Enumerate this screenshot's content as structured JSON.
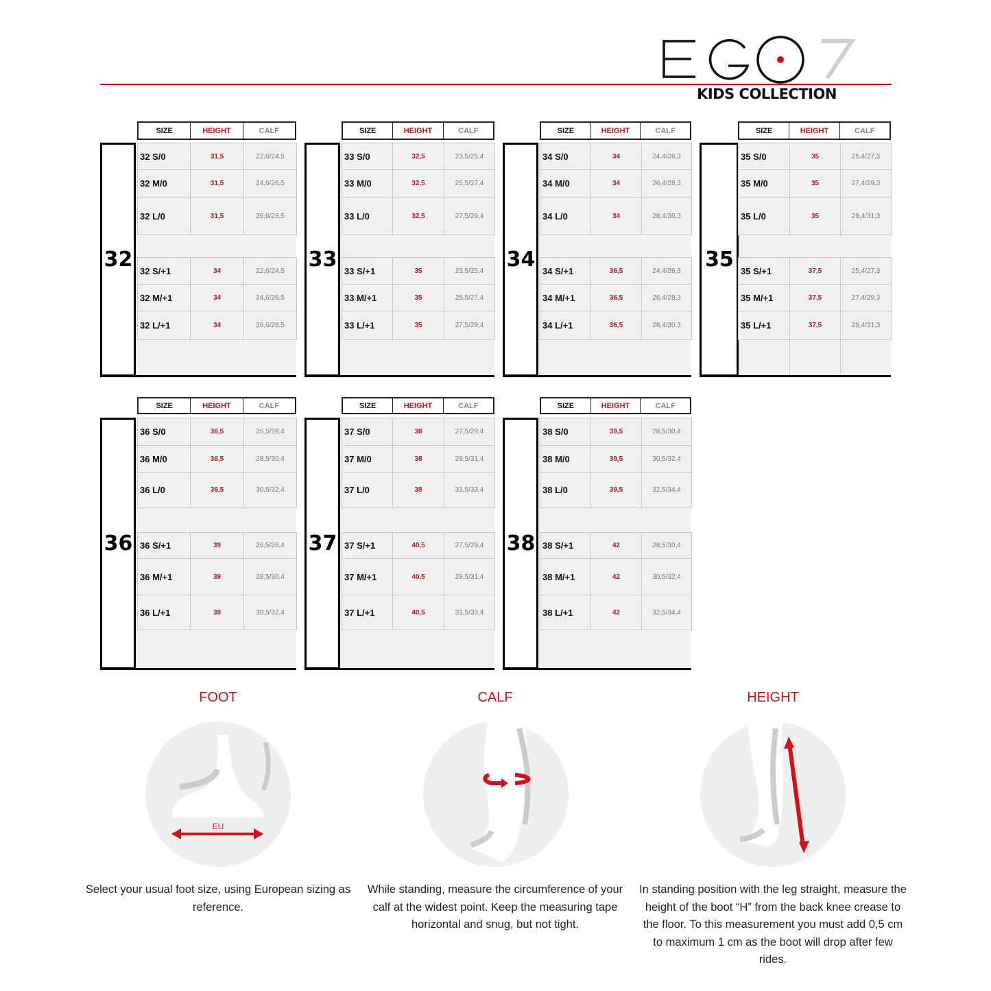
{
  "brand": {
    "logo_text": "EGO7",
    "subtitle": "KIDS COLLECTION",
    "accent": "#c0171e"
  },
  "table_headers": {
    "size": "SIZE",
    "height": "HEIGHT",
    "calf": "CALF"
  },
  "blocks": [
    {
      "size": "32",
      "rows": [
        [
          "32 S/0",
          "31,5",
          "22,6/24,5"
        ],
        [
          "32 M/0",
          "31,5",
          "24,6/26,5"
        ],
        [
          "32 L/0",
          "31,5",
          "26,6/28,5"
        ],
        [
          "32 S/+1",
          "34",
          "22,6/24,5"
        ],
        [
          "32 M/+1",
          "34",
          "24,6/26,5"
        ],
        [
          "32 L/+1",
          "34",
          "26,6/28,5"
        ]
      ]
    },
    {
      "size": "33",
      "rows": [
        [
          "33 S/0",
          "32,5",
          "23,5/25,4"
        ],
        [
          "33 M/0",
          "32,5",
          "25,5/27,4"
        ],
        [
          "33 L/0",
          "32,5",
          "27,5/29,4"
        ],
        [
          "33 S/+1",
          "35",
          "23,5/25,4"
        ],
        [
          "33 M/+1",
          "35",
          "25,5/27,4"
        ],
        [
          "33 L/+1",
          "35",
          "27,5/29,4"
        ]
      ]
    },
    {
      "size": "34",
      "rows": [
        [
          "34 S/0",
          "34",
          "24,4/26,3"
        ],
        [
          "34 M/0",
          "34",
          "26,4/28,3"
        ],
        [
          "34 L/0",
          "34",
          "28,4/30,3"
        ],
        [
          "34 S/+1",
          "36,5",
          "24,4/26,3"
        ],
        [
          "34 M/+1",
          "36,5",
          "26,4/28,3"
        ],
        [
          "34 L/+1",
          "36,5",
          "28,4/30,3"
        ]
      ]
    },
    {
      "size": "35",
      "rows": [
        [
          "35 S/0",
          "35",
          "25,4/27,3"
        ],
        [
          "35 M/0",
          "35",
          "27,4/29,3"
        ],
        [
          "35 L/0",
          "35",
          "29,4/31,3"
        ],
        [
          "35 S/+1",
          "37,5",
          "25,4/27,3"
        ],
        [
          "35 M/+1",
          "37,5",
          "27,4/29,3"
        ],
        [
          "35 L/+1",
          "37,5",
          "29,4/31,3"
        ]
      ]
    },
    {
      "size": "36",
      "rows": [
        [
          "36 S/0",
          "36,5",
          "26,5/28,4"
        ],
        [
          "36 M/0",
          "36,5",
          "28,5/30,4"
        ],
        [
          "36 L/0",
          "36,5",
          "30,5/32,4"
        ],
        [
          "36 S/+1",
          "39",
          "26,5/28,4"
        ],
        [
          "36 M/+1",
          "39",
          "28,5/30,4"
        ],
        [
          "36 L/+1",
          "39",
          "30,5/32,4"
        ]
      ]
    },
    {
      "size": "37",
      "rows": [
        [
          "37 S/0",
          "38",
          "27,5/29,4"
        ],
        [
          "37 M/0",
          "38",
          "29,5/31,4"
        ],
        [
          "37 L/0",
          "38",
          "31,5/33,4"
        ],
        [
          "37 S/+1",
          "40,5",
          "27,5/29,4"
        ],
        [
          "37 M/+1",
          "40,5",
          "29,5/31,4"
        ],
        [
          "37 L/+1",
          "40,5",
          "31,5/33,4"
        ]
      ]
    },
    {
      "size": "38",
      "rows": [
        [
          "38 S/0",
          "39,5",
          "28,5/30,4"
        ],
        [
          "38 M/0",
          "39,5",
          "30,5/32,4"
        ],
        [
          "38 L/0",
          "39,5",
          "32,5/34,4"
        ],
        [
          "38 S/+1",
          "42",
          "28,5/30,4"
        ],
        [
          "38 M/+1",
          "42",
          "30,5/32,4"
        ],
        [
          "38 L/+1",
          "42",
          "32,5/34,4"
        ]
      ]
    }
  ],
  "guides": [
    {
      "title": "FOOT",
      "label": "EU",
      "icon": "foot-measure-icon",
      "text": "Select your usual foot size, using European sizing as reference."
    },
    {
      "title": "CALF",
      "icon": "calf-measure-icon",
      "text": "While standing, measure the circumference of your calf at the widest point. Keep the measuring tape horizontal and snug, but not tight."
    },
    {
      "title": "HEIGHT",
      "icon": "height-measure-icon",
      "text": "In standing position with the leg straight, measure the height of the boot “H” from the back knee crease to the floor. To this measurement you must add 0,5 cm to maximum 1 cm as the boot will drop after few rides."
    }
  ]
}
